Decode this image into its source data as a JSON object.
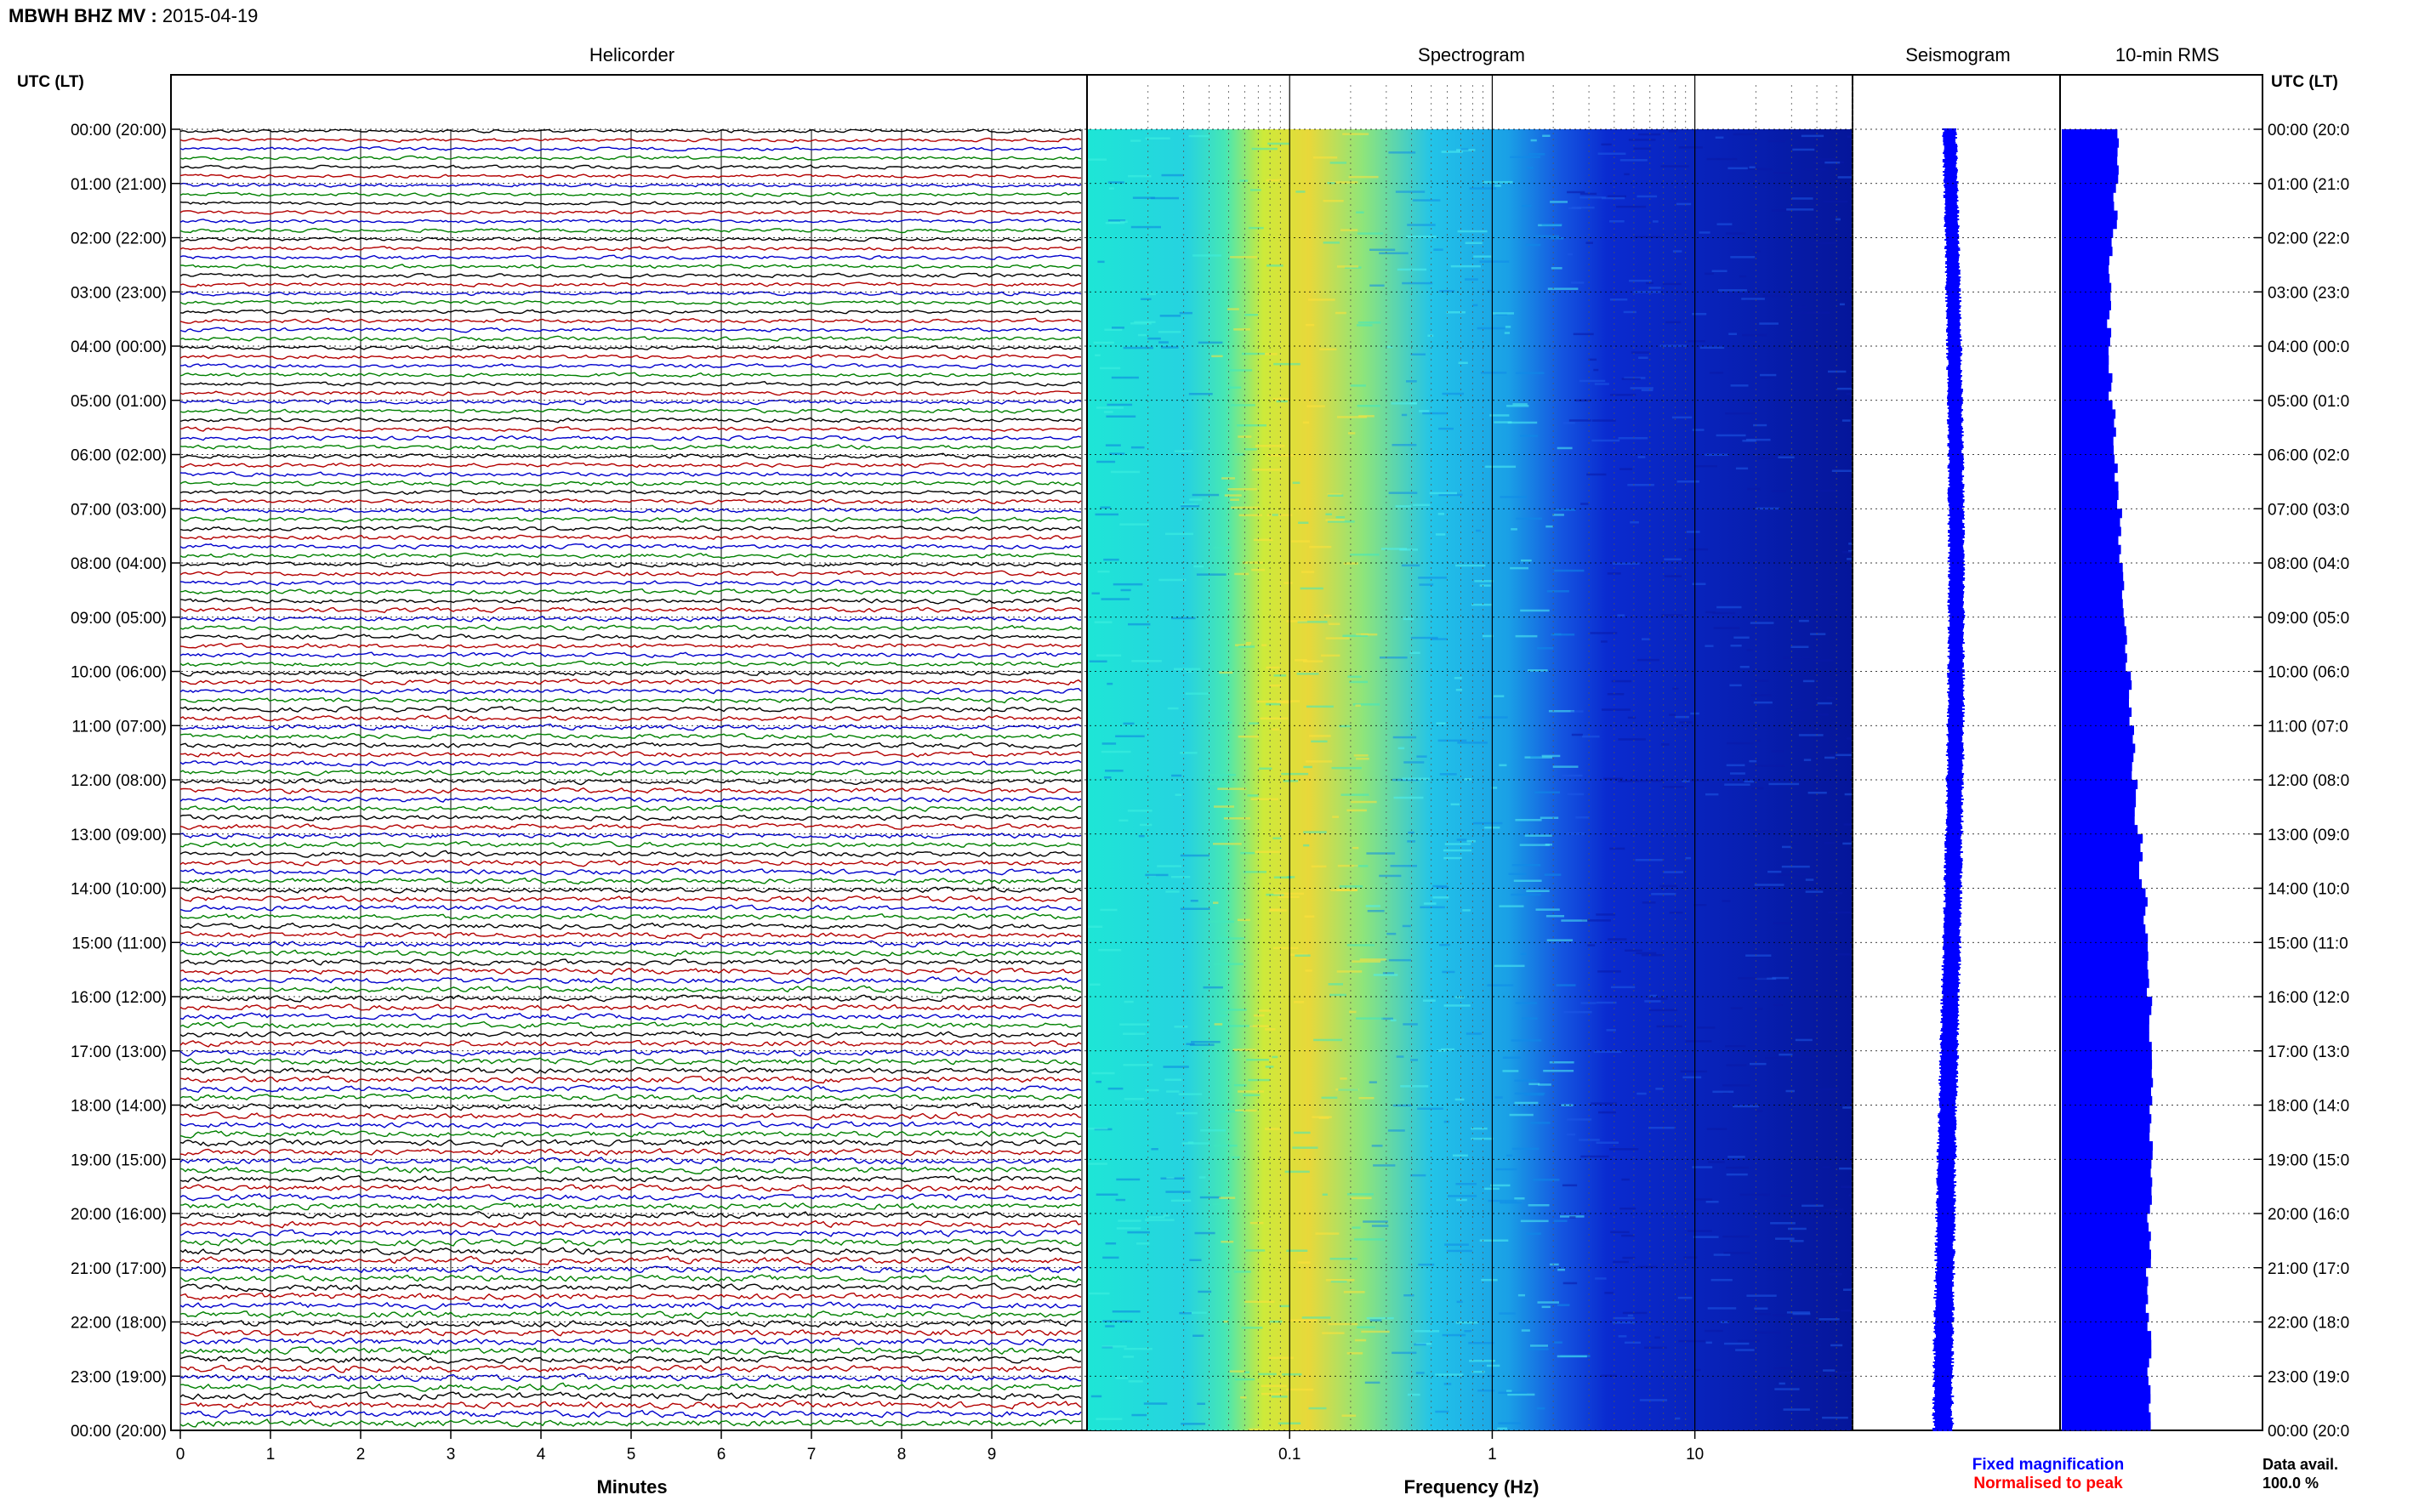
{
  "header": {
    "station": "MBWH BHZ MV",
    "separator": " : ",
    "date": "2015-04-19"
  },
  "panels": {
    "helicorder_title": "Helicorder",
    "spectrogram_title": "Spectrogram",
    "seismogram_title": "Seismogram",
    "rms_title": "10-min RMS"
  },
  "axis": {
    "time_label_left": "UTC (LT)",
    "time_label_right": "UTC (LT)",
    "minutes_label": "Minutes",
    "frequency_label": "Frequency (Hz)",
    "time_ticks": [
      "00:00 (20:00)",
      "01:00 (21:00)",
      "02:00 (22:00)",
      "03:00 (23:00)",
      "04:00 (00:00)",
      "05:00 (01:00)",
      "06:00 (02:00)",
      "07:00 (03:00)",
      "08:00 (04:00)",
      "09:00 (05:00)",
      "10:00 (06:00)",
      "11:00 (07:00)",
      "12:00 (08:00)",
      "13:00 (09:00)",
      "14:00 (10:00)",
      "15:00 (11:00)",
      "16:00 (12:00)",
      "17:00 (13:00)",
      "18:00 (14:00)",
      "19:00 (15:00)",
      "20:00 (16:00)",
      "21:00 (17:00)",
      "22:00 (18:00)",
      "23:00 (19:00)",
      "00:00 (20:00)"
    ],
    "time_ticks_right": [
      "00:00 (20:0",
      "01:00 (21:0",
      "02:00 (22:0",
      "03:00 (23:0",
      "04:00 (00:0",
      "05:00 (01:0",
      "06:00 (02:0",
      "07:00 (03:0",
      "08:00 (04:0",
      "09:00 (05:0",
      "10:00 (06:0",
      "11:00 (07:0",
      "12:00 (08:0",
      "13:00 (09:0",
      "14:00 (10:0",
      "15:00 (11:0",
      "16:00 (12:0",
      "17:00 (13:0",
      "18:00 (14:0",
      "19:00 (15:0",
      "20:00 (16:0",
      "21:00 (17:0",
      "22:00 (18:0",
      "23:00 (19:0",
      "00:00 (20:0"
    ],
    "minute_ticks": [
      "0",
      "1",
      "2",
      "3",
      "4",
      "5",
      "6",
      "7",
      "8",
      "9"
    ],
    "freq_ticks": [
      {
        "value": 0.1,
        "label": "0.1"
      },
      {
        "value": 1,
        "label": "1"
      },
      {
        "value": 10,
        "label": "10"
      }
    ],
    "freq_range": [
      0.01,
      60
    ],
    "freq_scale": "log",
    "minutes_range": [
      0,
      10
    ],
    "hours_range": [
      0,
      24
    ]
  },
  "legend": {
    "fixed": "Fixed magnification",
    "normalised": "Normalised to peak",
    "fixed_color": "#0000ff",
    "normalised_color": "#ff0000"
  },
  "data_avail": {
    "label": "Data avail.",
    "value": "100.0 %"
  },
  "colors": {
    "trace_cycle": [
      "#000000",
      "#b30000",
      "#0000cc",
      "#008000"
    ],
    "rms_bar": "#0000ff",
    "seis_trace": "#0000ff"
  },
  "chart_data": [
    {
      "type": "line",
      "title": "Helicorder",
      "xlabel": "Minutes",
      "ylabel": "UTC (LT)",
      "xlim": [
        0,
        10
      ],
      "trace_count": 144,
      "trace_minutes": 10
    },
    {
      "type": "heatmap",
      "title": "Spectrogram",
      "xlabel": "Frequency (Hz)",
      "xscale": "log",
      "xlim": [
        0.01,
        60
      ],
      "peak_energy_band_hz": [
        0.15,
        0.35
      ],
      "microseism_band_hz": [
        0.1,
        0.5
      ]
    },
    {
      "type": "line",
      "title": "Seismogram",
      "description": "24-hour compressed waveform"
    },
    {
      "type": "bar",
      "title": "10-min RMS",
      "orientation": "horizontal",
      "interval_minutes": 10,
      "hourly_values": [
        0.36,
        0.35,
        0.32,
        0.31,
        0.32,
        0.34,
        0.36,
        0.38,
        0.4,
        0.42,
        0.45,
        0.47,
        0.49,
        0.52,
        0.55,
        0.57,
        0.58,
        0.59,
        0.58,
        0.59,
        0.57,
        0.56,
        0.57,
        0.58
      ],
      "xlim": [
        0,
        1
      ]
    }
  ]
}
